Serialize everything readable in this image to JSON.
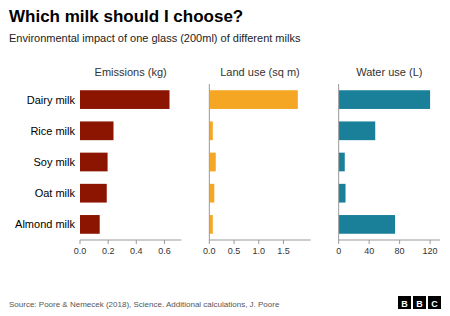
{
  "title": "Which milk should I choose?",
  "subtitle": "Environmental impact of one glass (200ml) of different milks",
  "source": "Source: Poore & Nemecek (2018), Science. Additional calculations, J. Poore",
  "annotations": [
    "B",
    "B",
    "C"
  ],
  "chart_data": [
    {
      "type": "bar",
      "orientation": "horizontal",
      "title": "Emissions (kg)",
      "categories": [
        "Dairy milk",
        "Rice milk",
        "Soy milk",
        "Oat milk",
        "Almond milk"
      ],
      "values": [
        0.636,
        0.238,
        0.196,
        0.19,
        0.14
      ],
      "color": "#8B1500",
      "xlim": [
        0,
        0.72
      ],
      "xticks": [
        {
          "value": 0,
          "label": "0.0"
        },
        0.2,
        0.4,
        0.6
      ],
      "grid": false
    },
    {
      "type": "bar",
      "orientation": "horizontal",
      "title": "Land use (sq m)",
      "categories": [
        "Dairy milk",
        "Rice milk",
        "Soy milk",
        "Oat milk",
        "Almond milk"
      ],
      "values": [
        1.79,
        0.07,
        0.13,
        0.1,
        0.07
      ],
      "color": "#F5A623",
      "xlim": [
        0,
        2.05
      ],
      "xticks": [
        {
          "value": 0,
          "label": "0.0"
        },
        0.5,
        {
          "value": 1,
          "label": "1.0"
        },
        1.5
      ],
      "grid": false,
      "tick_labels": "x"
    },
    {
      "type": "bar",
      "orientation": "horizontal",
      "title": "Water use (L)",
      "categories": [
        "Dairy milk",
        "Rice milk",
        "Soy milk",
        "Oat milk",
        "Almond milk"
      ],
      "values": [
        120.0,
        48.0,
        8.0,
        9.0,
        74.0
      ],
      "color": "#1A8099",
      "xlim": [
        0,
        133
      ],
      "xticks": [
        0,
        40,
        80,
        120
      ],
      "grid": false,
      "tick_labels": "x"
    }
  ]
}
